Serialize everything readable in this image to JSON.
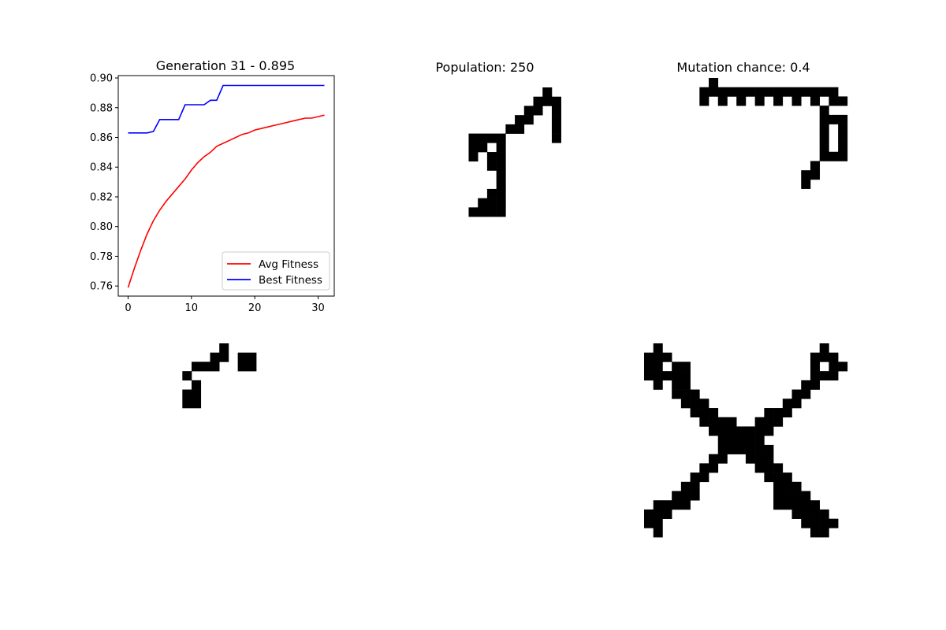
{
  "chart_data": [
    {
      "type": "line",
      "title": "Generation 31 - 0.895",
      "xlabel": "",
      "ylabel": "",
      "xlim": [
        -1.55,
        32.55
      ],
      "ylim": [
        0.7532,
        0.9016
      ],
      "xticks": [
        0,
        10,
        20,
        30
      ],
      "yticks": [
        0.76,
        0.78,
        0.8,
        0.82,
        0.84,
        0.86,
        0.88,
        0.9
      ],
      "ytick_labels": [
        "0.76",
        "0.78",
        "0.80",
        "0.82",
        "0.84",
        "0.86",
        "0.88",
        "0.90"
      ],
      "grid": false,
      "legend": "lower-right",
      "x": [
        0,
        1,
        2,
        3,
        4,
        5,
        6,
        7,
        8,
        9,
        10,
        11,
        12,
        13,
        14,
        15,
        16,
        17,
        18,
        19,
        20,
        21,
        22,
        23,
        24,
        25,
        26,
        27,
        28,
        29,
        30,
        31
      ],
      "series": [
        {
          "name": "Avg Fitness",
          "color": "#ff0000",
          "values": [
            0.759,
            0.772,
            0.784,
            0.795,
            0.804,
            0.811,
            0.817,
            0.822,
            0.827,
            0.832,
            0.838,
            0.843,
            0.847,
            0.85,
            0.854,
            0.856,
            0.858,
            0.86,
            0.862,
            0.863,
            0.865,
            0.866,
            0.867,
            0.868,
            0.869,
            0.87,
            0.871,
            0.872,
            0.873,
            0.873,
            0.874,
            0.875
          ]
        },
        {
          "name": "Best Fitness",
          "color": "#0000ff",
          "values": [
            0.863,
            0.863,
            0.863,
            0.863,
            0.864,
            0.872,
            0.872,
            0.872,
            0.872,
            0.882,
            0.882,
            0.882,
            0.882,
            0.885,
            0.885,
            0.895,
            0.895,
            0.895,
            0.895,
            0.895,
            0.895,
            0.895,
            0.895,
            0.895,
            0.895,
            0.895,
            0.895,
            0.895,
            0.895,
            0.895,
            0.895,
            0.895
          ]
        }
      ]
    },
    {
      "type": "heatmap",
      "title": "Population: 250",
      "colors": [
        "#ffffff",
        "#000000"
      ],
      "grid_rows": [
        "0000000000000000010000",
        "0000000000000000111000",
        "0000000000000001101000",
        "0000000000000011001000",
        "0000000000000110001000",
        "0000000001111000001000",
        "0000000001101000000000",
        "0000000001011000000000",
        "0000000000011000000000",
        "0000000000001000000000",
        "0000000000001000000000",
        "0000000000011000000000",
        "0000000000111000000000",
        "0000000001111000000000",
        "0000000000000000000000",
        "0000000000000000000000",
        "0000000000000000000000",
        "0000000000000000000000",
        "0000000000000000000000",
        "0000000000000000000000",
        "0000000000000000000000",
        "0000000000000000000000"
      ]
    },
    {
      "type": "heatmap",
      "title": "Mutation chance: 0.4",
      "colors": [
        "#ffffff",
        "#000000"
      ],
      "grid_rows": [
        "0000000100000000000000",
        "0000001111111111111110",
        "0000001010101010101011",
        "0000000000000000000100",
        "0000000000000000000111",
        "0000000000000000000101",
        "0000000000000000000101",
        "0000000000000000000101",
        "0000000000000000000111",
        "0000000000000000001000",
        "0000000000000000011000",
        "0000000000000000010000",
        "0000000000000000000000",
        "0000000000000000000000",
        "0000000000000000000000",
        "0000000000000000000000",
        "0000000000000000000000",
        "0000000000000000000000",
        "0000000000000000000000",
        "0000000000000000000000",
        "0000000000000000000000",
        "0000000000000000000000"
      ]
    },
    {
      "type": "heatmap",
      "title": "",
      "colors": [
        "#ffffff",
        "#000000"
      ],
      "grid_rows": [
        "0000000000100000000000",
        "0000000001101100000000",
        "0000000111001100000000",
        "0000001000000000000000",
        "0000000100000000000000",
        "0000001100000000000000",
        "0000001100000000000000",
        "0000000000000000000000",
        "0000000000000000000000",
        "0000000000000000000000",
        "0000000000000000000000",
        "0000000000000000000000",
        "0000000000000000000000",
        "0000000000000000000000",
        "0000000000000000000000",
        "0000000000000000000000",
        "0000000000000000000000",
        "0000000000000000000000",
        "0000000000000000000000",
        "0000000000000000000000",
        "0000000000000000000000",
        "0000000000000000000000"
      ]
    },
    {
      "type": "heatmap",
      "title": "",
      "colors": [
        "#ffffff",
        "#000000"
      ],
      "grid_rows": [
        "0000000000000000000000",
        "0000000000000000000000",
        "0000000000000000000000",
        "0000000000000000000000",
        "0000000000000000000000",
        "0000000000000000000000",
        "0000000000000000000000",
        "0000000000000000000000",
        "0000000000000000000000",
        "0000000000000000000000",
        "0000000000000000000000",
        "0000000000000000000000",
        "0000000000000000000000",
        "0000000000000000000000",
        "0000000000000000000000",
        "0000000000000000000000",
        "0000000000000000000000",
        "0000000000000000000000",
        "0000000000000000000000",
        "0000000000000000000000",
        "0000000000000000000000",
        "0000000000000000000000"
      ]
    },
    {
      "type": "heatmap",
      "title": "",
      "colors": [
        "#ffffff",
        "#000000"
      ],
      "grid_rows": [
        "0100000000000000000100",
        "1110000000000000001110",
        "1101100000000000001011",
        "1111100000000000001110",
        "0101100000000000011000",
        "0001110000000000110000",
        "0000111000000001100000",
        "0000011100000111000000",
        "0000001111001110000000",
        "0000000111111100000000",
        "0000000011111000000000",
        "0000000011111100000000",
        "0000000110011100000000",
        "0000001100001110000000",
        "0000011000000111000000",
        "0000110000000011100000",
        "0001110000000011110000",
        "0111100000000011111000",
        "1110000000000000111100",
        "1100000000000000011110",
        "0100000000000000001100",
        "0000000000000000000000"
      ]
    }
  ]
}
